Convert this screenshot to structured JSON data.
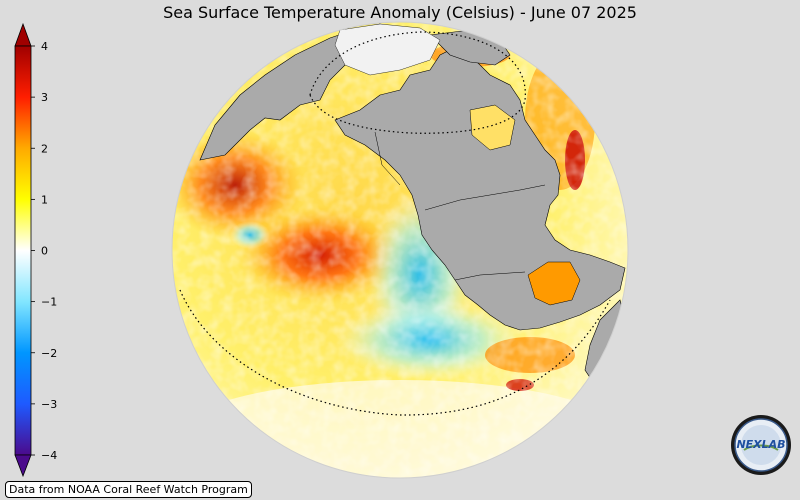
{
  "title": "Sea Surface Temperature Anomaly (Celsius) - June 07 2025",
  "colorbar": {
    "ticks": [
      "4",
      "3",
      "2",
      "1",
      "0",
      "−1",
      "−2",
      "−3",
      "−4"
    ],
    "min": -4,
    "max": 4,
    "stops": [
      {
        "value": -4,
        "color": "#4b0a8c"
      },
      {
        "value": -3,
        "color": "#1e5aff"
      },
      {
        "value": -2,
        "color": "#0096ff"
      },
      {
        "value": -1,
        "color": "#82e6ff"
      },
      {
        "value": 0,
        "color": "#ffffff"
      },
      {
        "value": 1,
        "color": "#ffff00"
      },
      {
        "value": 2,
        "color": "#ffaa00"
      },
      {
        "value": 3,
        "color": "#ff1e00"
      },
      {
        "value": 4,
        "color": "#a00000"
      }
    ]
  },
  "map": {
    "land_color": "#aaaaaa",
    "background_color": "#dcdcdc"
  },
  "credit": "Data from NOAA Coral Reef Watch Program",
  "logo": {
    "text": "NEXLAB"
  }
}
